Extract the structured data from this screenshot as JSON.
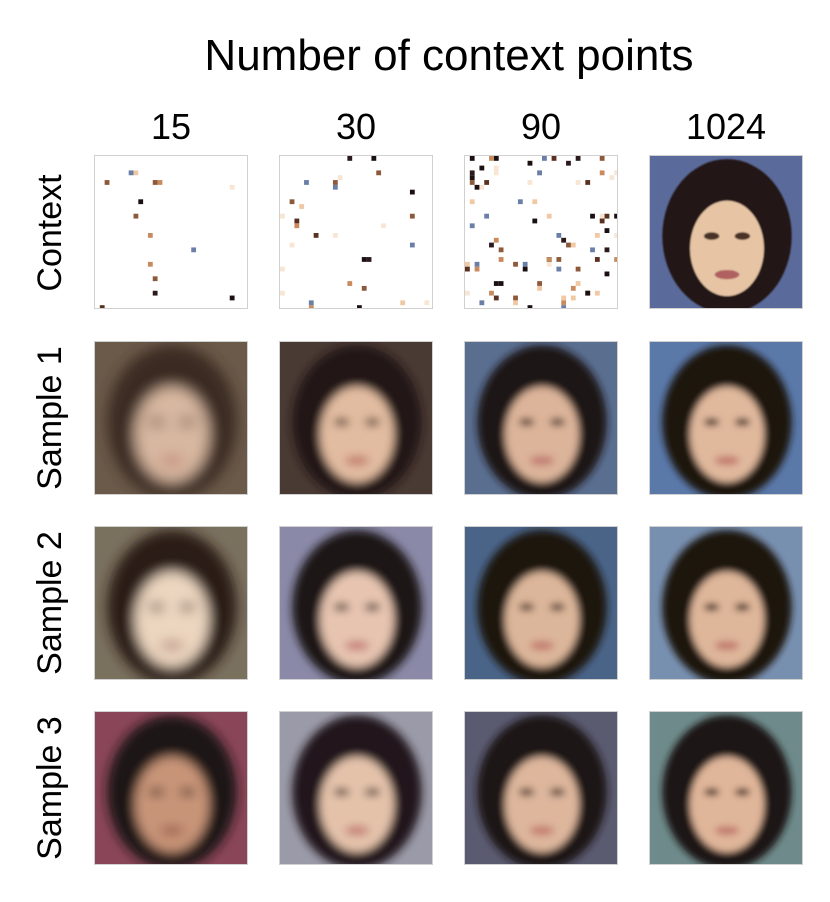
{
  "title": "Number of context points",
  "columns": [
    "15",
    "30",
    "90",
    "1024"
  ],
  "rows": [
    "Context",
    "Sample 1",
    "Sample 2",
    "Sample 3"
  ],
  "colors": {
    "background": "#ffffff",
    "skin": "#e4b99a",
    "hair": "#1c1412",
    "border": "#d0d0d0"
  }
}
